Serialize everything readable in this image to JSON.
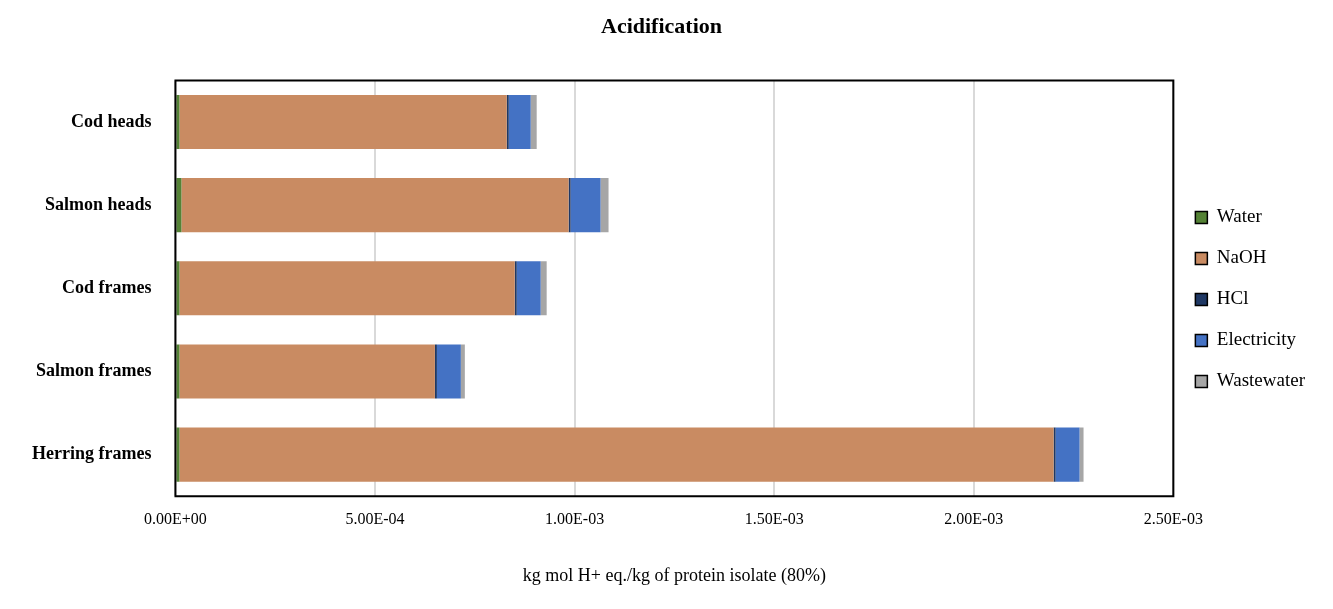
{
  "chart_data": {
    "type": "bar",
    "orientation": "horizontal",
    "stacked": true,
    "title": "Acidification",
    "xlabel": "kg mol H+ eq./kg of protein isolate (80%)",
    "categories": [
      "Cod heads",
      "Salmon heads",
      "Cod frames",
      "Salmon frames",
      "Herring frames"
    ],
    "series": [
      {
        "name": "Water",
        "color": "#548235",
        "values": [
          1e-05,
          1.5e-05,
          1e-05,
          1e-05,
          1e-05
        ]
      },
      {
        "name": "NaOH",
        "color": "#c98b62",
        "values": [
          0.00082,
          0.00097,
          0.00084,
          0.00064,
          0.00219
        ]
      },
      {
        "name": "HCl",
        "color": "#1f3864",
        "values": [
          5e-06,
          5e-06,
          5e-06,
          5e-06,
          5e-06
        ]
      },
      {
        "name": "Electricity",
        "color": "#4472c4",
        "values": [
          5.5e-05,
          7.5e-05,
          6e-05,
          6e-05,
          6e-05
        ]
      },
      {
        "name": "Wastewater",
        "color": "#a6a6a6",
        "values": [
          1.5e-05,
          2e-05,
          1.5e-05,
          1e-05,
          1e-05
        ]
      }
    ],
    "xlim": [
      0,
      0.0025
    ],
    "xticks": [
      {
        "value": 0,
        "label": "0.00E+00"
      },
      {
        "value": 0.0005,
        "label": "5.00E-04"
      },
      {
        "value": 0.001,
        "label": "1.00E-03"
      },
      {
        "value": 0.0015,
        "label": "1.50E-03"
      },
      {
        "value": 0.002,
        "label": "2.00E-03"
      },
      {
        "value": 0.0025,
        "label": "2.50E-03"
      }
    ],
    "grid": "x",
    "legend": "right"
  }
}
